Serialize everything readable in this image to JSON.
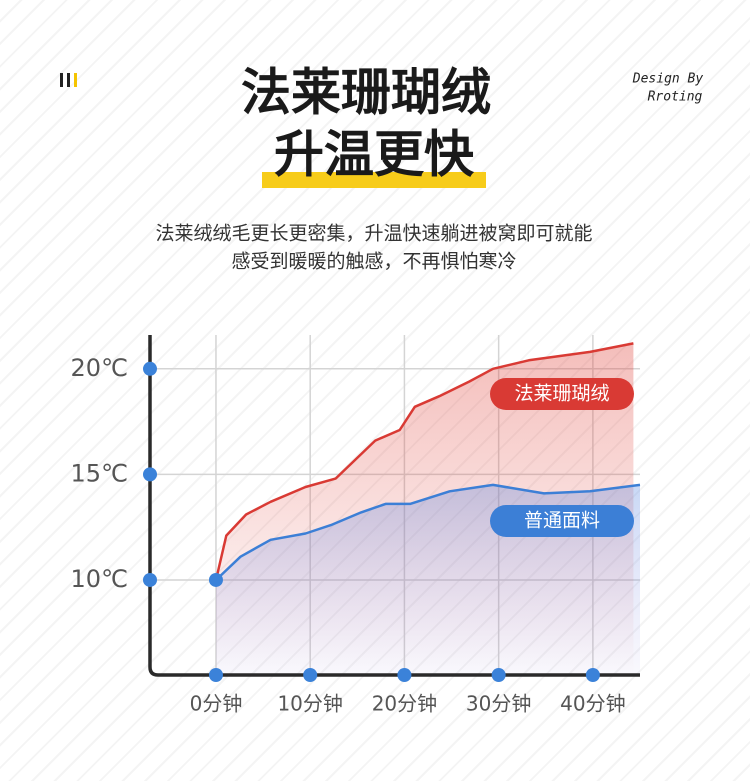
{
  "header": {
    "title_line1": "法莱珊瑚绒",
    "title_line2": "升温更快",
    "credit_line1": "Design By",
    "credit_line2": "Rroting"
  },
  "description": {
    "line1": "法莱绒绒毛更长更密集，升温快速躺进被窝即可就能",
    "line2": "感受到暖暖的触感，不再惧怕寒冷"
  },
  "chart_data": {
    "type": "line",
    "xlim": [
      -7,
      45
    ],
    "xticks": [
      {
        "value": 0,
        "label": "0分钟"
      },
      {
        "value": 10,
        "label": "10分钟"
      },
      {
        "value": 20,
        "label": "20分钟"
      },
      {
        "value": 30,
        "label": "30分钟"
      },
      {
        "value": 40,
        "label": "40分钟"
      }
    ],
    "ylim": [
      5.5,
      21.6
    ],
    "yticks": [
      {
        "value": 10,
        "label": "10℃"
      },
      {
        "value": 15,
        "label": "15℃"
      },
      {
        "value": 20,
        "label": "20℃"
      }
    ],
    "grid": true,
    "series": [
      {
        "name": "法莱珊瑚绒",
        "color": "#d93a34",
        "x": [
          0,
          1.1,
          3.2,
          5.8,
          9.5,
          12.7,
          14.8,
          16.9,
          19.5,
          21.1,
          23.7,
          26.9,
          29.4,
          33.2,
          39.7,
          44.3
        ],
        "values": [
          10,
          12.1,
          13.1,
          13.7,
          14.4,
          14.8,
          15.7,
          16.6,
          17.1,
          18.2,
          18.7,
          19.4,
          20.0,
          20.4,
          20.8,
          21.2
        ]
      },
      {
        "name": "普通面料",
        "color": "#3c7fd6",
        "x": [
          0,
          2.6,
          5.8,
          9.5,
          12.2,
          15.4,
          18,
          20.6,
          24.8,
          29.4,
          34.8,
          39.7,
          45
        ],
        "values": [
          10,
          11.1,
          11.9,
          12.2,
          12.6,
          13.2,
          13.6,
          13.6,
          14.2,
          14.5,
          14.1,
          14.2,
          14.5
        ]
      }
    ]
  }
}
